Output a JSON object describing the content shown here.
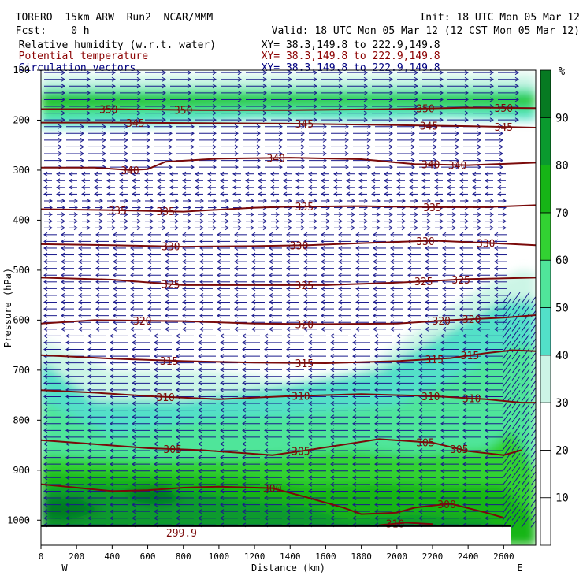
{
  "header": {
    "model": "TORERO",
    "resolution": "15km ARW",
    "run": "Run2",
    "org": "NCAR/MMM",
    "init_label": "Init:",
    "init_time": "18 UTC Mon 05 Mar 12",
    "fcst_label": "Fcst:",
    "fcst_value": "0 h",
    "valid_label": "Valid:",
    "valid_time": "18 UTC Mon 05 Mar 12 (12 CST Mon 05 Mar 12)"
  },
  "fields": [
    {
      "name": "Relative humidity (w.r.t. water)",
      "xy_label": "XY=",
      "xy": "38.3,149.8 to 222.9,149.8",
      "color": "#000000"
    },
    {
      "name": "Potential temperature",
      "xy_label": "XY=",
      "xy": "38.3,149.8 to 222.9,149.8",
      "color": "#8b0000"
    },
    {
      "name": "Circulation vectors",
      "xy_label": "XY=",
      "xy": "38.3,149.8 to 222.9,149.8",
      "color": "#000080"
    }
  ],
  "chart_data": {
    "type": "heatmap",
    "xlabel": "Distance (km)",
    "ylabel": "Pressure (hPa)",
    "xlim": [
      0,
      2780
    ],
    "ylim": [
      1050,
      100
    ],
    "x_ticks": [
      "0",
      "200",
      "400",
      "600",
      "800",
      "1000",
      "1200",
      "1400",
      "1600",
      "1800",
      "2000",
      "2200",
      "2400",
      "2600"
    ],
    "y_ticks": [
      "100",
      "200",
      "300",
      "400",
      "500",
      "600",
      "700",
      "800",
      "900",
      "1000"
    ],
    "left_end": "W",
    "right_end": "E",
    "colorbar": {
      "unit": "%",
      "levels": [
        "10",
        "20",
        "30",
        "40",
        "50",
        "60",
        "70",
        "80",
        "90"
      ],
      "colors": [
        "#ffffff",
        "#ffffff",
        "#ffffff",
        "#ccf5e6",
        "#52e0c8",
        "#50e59a",
        "#32d232",
        "#16b516",
        "#0a9a2e",
        "#067a22"
      ]
    },
    "theta_isentropes": [
      {
        "label": "350",
        "points": [
          [
            0,
            178
          ],
          [
            400,
            178
          ],
          [
            900,
            180
          ],
          [
            1400,
            180
          ],
          [
            2000,
            178
          ],
          [
            2400,
            175
          ],
          [
            2780,
            176
          ]
        ],
        "labels_at": [
          380,
          800,
          2160,
          2600
        ]
      },
      {
        "label": "345",
        "points": [
          [
            0,
            205
          ],
          [
            400,
            205
          ],
          [
            900,
            206
          ],
          [
            1400,
            207
          ],
          [
            2000,
            210
          ],
          [
            2400,
            212
          ],
          [
            2780,
            215
          ]
        ],
        "labels_at": [
          530,
          1480,
          2180,
          2600
        ]
      },
      {
        "label": "340",
        "points": [
          [
            0,
            295
          ],
          [
            300,
            295
          ],
          [
            500,
            300
          ],
          [
            600,
            298
          ],
          [
            700,
            283
          ],
          [
            1000,
            277
          ],
          [
            1400,
            275
          ],
          [
            1800,
            278
          ],
          [
            2100,
            288
          ],
          [
            2400,
            290
          ],
          [
            2780,
            285
          ]
        ],
        "labels_at": [
          500,
          1320,
          2190,
          2340
        ]
      },
      {
        "label": "335",
        "points": [
          [
            0,
            378
          ],
          [
            400,
            380
          ],
          [
            800,
            383
          ],
          [
            1200,
            375
          ],
          [
            1400,
            373
          ],
          [
            1800,
            372
          ],
          [
            2200,
            374
          ],
          [
            2500,
            374
          ],
          [
            2780,
            370
          ]
        ],
        "labels_at": [
          430,
          700,
          1480,
          2200
        ]
      },
      {
        "label": "330",
        "points": [
          [
            0,
            448
          ],
          [
            400,
            450
          ],
          [
            800,
            453
          ],
          [
            1200,
            452
          ],
          [
            1500,
            450
          ],
          [
            1800,
            446
          ],
          [
            2200,
            441
          ],
          [
            2600,
            447
          ],
          [
            2780,
            450
          ]
        ],
        "labels_at": [
          730,
          1450,
          2160,
          2500
        ]
      },
      {
        "label": "325",
        "points": [
          [
            0,
            515
          ],
          [
            400,
            519
          ],
          [
            800,
            530
          ],
          [
            1200,
            530
          ],
          [
            1600,
            530
          ],
          [
            2000,
            525
          ],
          [
            2400,
            518
          ],
          [
            2780,
            515
          ]
        ],
        "labels_at": [
          730,
          1480,
          2150,
          2360
        ]
      },
      {
        "label": "320",
        "points": [
          [
            0,
            607
          ],
          [
            300,
            600
          ],
          [
            800,
            602
          ],
          [
            1200,
            607
          ],
          [
            1600,
            608
          ],
          [
            2000,
            607
          ],
          [
            2300,
            600
          ],
          [
            2600,
            595
          ],
          [
            2780,
            590
          ]
        ],
        "labels_at": [
          570,
          1480,
          2250,
          2420
        ]
      },
      {
        "label": "315",
        "points": [
          [
            0,
            670
          ],
          [
            400,
            677
          ],
          [
            800,
            682
          ],
          [
            1200,
            685
          ],
          [
            1600,
            686
          ],
          [
            2000,
            682
          ],
          [
            2300,
            676
          ],
          [
            2500,
            666
          ],
          [
            2650,
            660
          ],
          [
            2780,
            662
          ]
        ],
        "labels_at": [
          720,
          1480,
          2210,
          2410
        ]
      },
      {
        "label": "310",
        "points": [
          [
            0,
            740
          ],
          [
            300,
            745
          ],
          [
            600,
            752
          ],
          [
            1000,
            758
          ],
          [
            1400,
            752
          ],
          [
            1800,
            748
          ],
          [
            2200,
            752
          ],
          [
            2500,
            758
          ],
          [
            2700,
            765
          ],
          [
            2780,
            765
          ]
        ],
        "labels_at": [
          700,
          1460,
          2190,
          2420
        ]
      },
      {
        "label": "305",
        "points": [
          [
            0,
            840
          ],
          [
            300,
            848
          ],
          [
            600,
            856
          ],
          [
            900,
            860
          ],
          [
            1300,
            870
          ],
          [
            1500,
            860
          ],
          [
            1900,
            838
          ],
          [
            2200,
            845
          ],
          [
            2400,
            862
          ],
          [
            2600,
            870
          ],
          [
            2700,
            860
          ]
        ],
        "labels_at": [
          740,
          1460,
          2160,
          2350
        ]
      },
      {
        "label": "300",
        "points": [
          [
            0,
            928
          ],
          [
            200,
            935
          ],
          [
            400,
            942
          ],
          [
            600,
            940
          ],
          [
            800,
            935
          ],
          [
            1000,
            933
          ],
          [
            1300,
            936
          ],
          [
            1500,
            955
          ],
          [
            1700,
            975
          ],
          [
            1800,
            988
          ],
          [
            2000,
            985
          ],
          [
            2100,
            975
          ],
          [
            2300,
            967
          ],
          [
            2500,
            985
          ],
          [
            2600,
            995
          ]
        ],
        "labels_at": [
          1300,
          2280
        ]
      },
      {
        "label": "310",
        "points": [
          [
            1900,
            1010
          ],
          [
            2050,
            1005
          ],
          [
            2200,
            1008
          ]
        ],
        "labels_at": [
          1990
        ]
      },
      {
        "label": "299.9",
        "points": [],
        "labels_at": [
          790
        ]
      }
    ],
    "theta_label_y": {
      "350": 180,
      "345": 207,
      "340": [
        300,
        275,
        290,
        290
      ],
      "335": [
        383,
        383,
        373,
        374
      ],
      "330": [
        453,
        450,
        441,
        447
      ],
      "325": [
        529,
        530,
        525,
        518
      ],
      "320": [
        601,
        607,
        603,
        597
      ],
      "315": [
        682,
        686,
        678,
        668
      ],
      "310": [
        752,
        752,
        752,
        758
      ],
      "305": [
        858,
        862,
        840,
        860
      ],
      "300": [
        936,
        970
      ]
    }
  }
}
